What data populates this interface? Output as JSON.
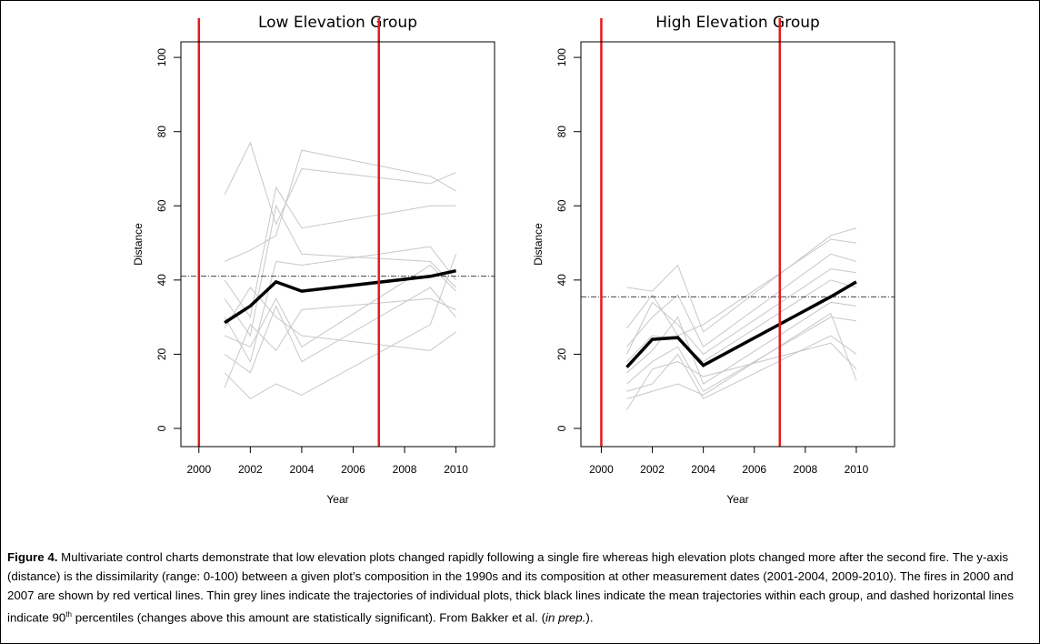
{
  "chart_data": [
    {
      "type": "line",
      "title": "Low Elevation Group",
      "xlabel": "Year",
      "ylabel": "Distance",
      "x": [
        2001,
        2002,
        2003,
        2004,
        2009,
        2010
      ],
      "xlim": [
        1999.3,
        2011.5
      ],
      "ylim": [
        -4.9,
        104.2
      ],
      "xticks": [
        2000,
        2002,
        2004,
        2006,
        2008,
        2010
      ],
      "yticks": [
        0,
        20,
        40,
        60,
        80,
        100
      ],
      "series": [
        {
          "color": "#c8c8c8",
          "values": [
            63,
            77,
            55,
            70,
            66,
            69
          ]
        },
        {
          "color": "#c8c8c8",
          "values": [
            45,
            48,
            52,
            75,
            68,
            64
          ]
        },
        {
          "color": "#c8c8c8",
          "values": [
            40,
            30,
            65,
            54,
            60,
            60
          ]
        },
        {
          "color": "#c8c8c8",
          "values": [
            35,
            25,
            60,
            47,
            45,
            38
          ]
        },
        {
          "color": "#c8c8c8",
          "values": [
            30,
            18,
            45,
            44,
            49,
            40
          ]
        },
        {
          "color": "#c8c8c8",
          "values": [
            25,
            22,
            35,
            22,
            44,
            37
          ]
        },
        {
          "color": "#c8c8c8",
          "values": [
            20,
            15,
            33,
            18,
            38,
            30
          ]
        },
        {
          "color": "#c8c8c8",
          "values": [
            15,
            8,
            12,
            9,
            28,
            47
          ]
        },
        {
          "color": "#c8c8c8",
          "values": [
            27,
            38,
            30,
            25,
            21,
            26
          ]
        },
        {
          "color": "#c8c8c8",
          "values": [
            11,
            28,
            21,
            32,
            35,
            32
          ]
        },
        {
          "color": "#000000",
          "values": [
            28.5,
            33,
            39.5,
            37,
            41,
            42.5
          ]
        }
      ],
      "vlines": {
        "values": [
          2000,
          2007
        ],
        "color": "#e41a1c"
      },
      "hline": 41
    },
    {
      "type": "line",
      "title": "High Elevation Group",
      "xlabel": "Year",
      "ylabel": "Distance",
      "x": [
        2001,
        2002,
        2003,
        2004,
        2009,
        2010
      ],
      "xlim": [
        1999.2,
        2011.5
      ],
      "ylim": [
        -4.9,
        104.2
      ],
      "xticks": [
        2000,
        2002,
        2004,
        2006,
        2008,
        2010
      ],
      "yticks": [
        0,
        20,
        40,
        60,
        80,
        100
      ],
      "series": [
        {
          "color": "#c8c8c8",
          "values": [
            38,
            37,
            44,
            26,
            52,
            54
          ]
        },
        {
          "color": "#c8c8c8",
          "values": [
            27,
            36,
            25,
            28,
            51,
            50
          ]
        },
        {
          "color": "#c8c8c8",
          "values": [
            22,
            30,
            36,
            22,
            47,
            45
          ]
        },
        {
          "color": "#c8c8c8",
          "values": [
            20,
            34,
            28,
            20,
            43,
            42
          ]
        },
        {
          "color": "#c8c8c8",
          "values": [
            18,
            25,
            24,
            18,
            40,
            38
          ]
        },
        {
          "color": "#c8c8c8",
          "values": [
            15,
            21,
            30,
            12,
            34,
            33
          ]
        },
        {
          "color": "#c8c8c8",
          "values": [
            12,
            18,
            22,
            10,
            30,
            29
          ]
        },
        {
          "color": "#c8c8c8",
          "values": [
            10,
            12,
            20,
            8,
            25,
            20
          ]
        },
        {
          "color": "#c8c8c8",
          "values": [
            5,
            16,
            18,
            14,
            23,
            16
          ]
        },
        {
          "color": "#c8c8c8",
          "values": [
            8,
            10,
            12,
            9,
            31,
            13
          ]
        },
        {
          "color": "#000000",
          "values": [
            16.5,
            24,
            24.5,
            17,
            35.5,
            39.5
          ]
        }
      ],
      "vlines": {
        "values": [
          2000,
          2007
        ],
        "color": "#e41a1c"
      },
      "hline": 35.5
    }
  ],
  "caption": {
    "label": "Figure 4.",
    "text_1": " Multivariate control charts demonstrate that low elevation plots changed rapidly following a single fire whereas high elevation plots changed more after the second fire. The y-axis (distance) is the dissimilarity (range: 0-100) between a given plot’s composition in the 1990s and its composition at other measurement dates (2001-2004, 2009-2010). The fires in 2000 and 2007 are shown by red vertical lines. Thin grey lines indicate the trajectories of individual plots, thick black lines indicate the mean trajectories within each group, and dashed horizontal lines indicate 90",
    "superscript": "th",
    "text_2": " percentiles (changes above this amount are statistically significant). From Bakker et al. (",
    "italic": "in prep.",
    "text_3": ")."
  }
}
